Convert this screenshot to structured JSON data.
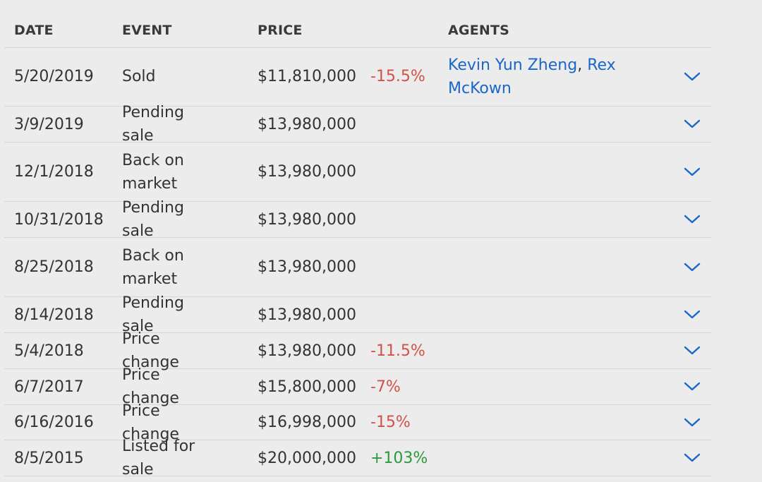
{
  "columns": {
    "date": "DATE",
    "event": "EVENT",
    "price": "PRICE",
    "agents": "AGENTS"
  },
  "rows": [
    {
      "date": "5/20/2019",
      "event": "Sold",
      "price": "$11,810,000",
      "change": "-15.5%",
      "change_type": "neg",
      "agents": [
        "Kevin Yun Zheng",
        "Rex McKown"
      ],
      "agents_sep": ","
    },
    {
      "date": "3/9/2019",
      "event": "Pending sale",
      "price": "$13,980,000",
      "change": "",
      "change_type": "",
      "agents": []
    },
    {
      "date": "12/1/2018",
      "event": "Back on market",
      "price": "$13,980,000",
      "change": "",
      "change_type": "",
      "agents": []
    },
    {
      "date": "10/31/2018",
      "event": "Pending sale",
      "price": "$13,980,000",
      "change": "",
      "change_type": "",
      "agents": []
    },
    {
      "date": "8/25/2018",
      "event": "Back on market",
      "price": "$13,980,000",
      "change": "",
      "change_type": "",
      "agents": []
    },
    {
      "date": "8/14/2018",
      "event": "Pending sale",
      "price": "$13,980,000",
      "change": "",
      "change_type": "",
      "agents": []
    },
    {
      "date": "5/4/2018",
      "event": "Price change",
      "price": "$13,980,000",
      "change": "-11.5%",
      "change_type": "neg",
      "agents": []
    },
    {
      "date": "6/7/2017",
      "event": "Price change",
      "price": "$15,800,000",
      "change": "-7%",
      "change_type": "neg",
      "agents": []
    },
    {
      "date": "6/16/2016",
      "event": "Price change",
      "price": "$16,998,000",
      "change": "-15%",
      "change_type": "neg",
      "agents": []
    },
    {
      "date": "8/5/2015",
      "event": "Listed for sale",
      "price": "$20,000,000",
      "change": "+103%",
      "change_type": "pos",
      "agents": []
    }
  ],
  "colors": {
    "negative": "#d0534a",
    "positive": "#2b9a3a",
    "link": "#1a66c9",
    "chevron": "#1a66c9",
    "divider": "#d6d6d6",
    "background": "#ececec"
  },
  "icons": {
    "expand": "chevron-down-icon"
  }
}
